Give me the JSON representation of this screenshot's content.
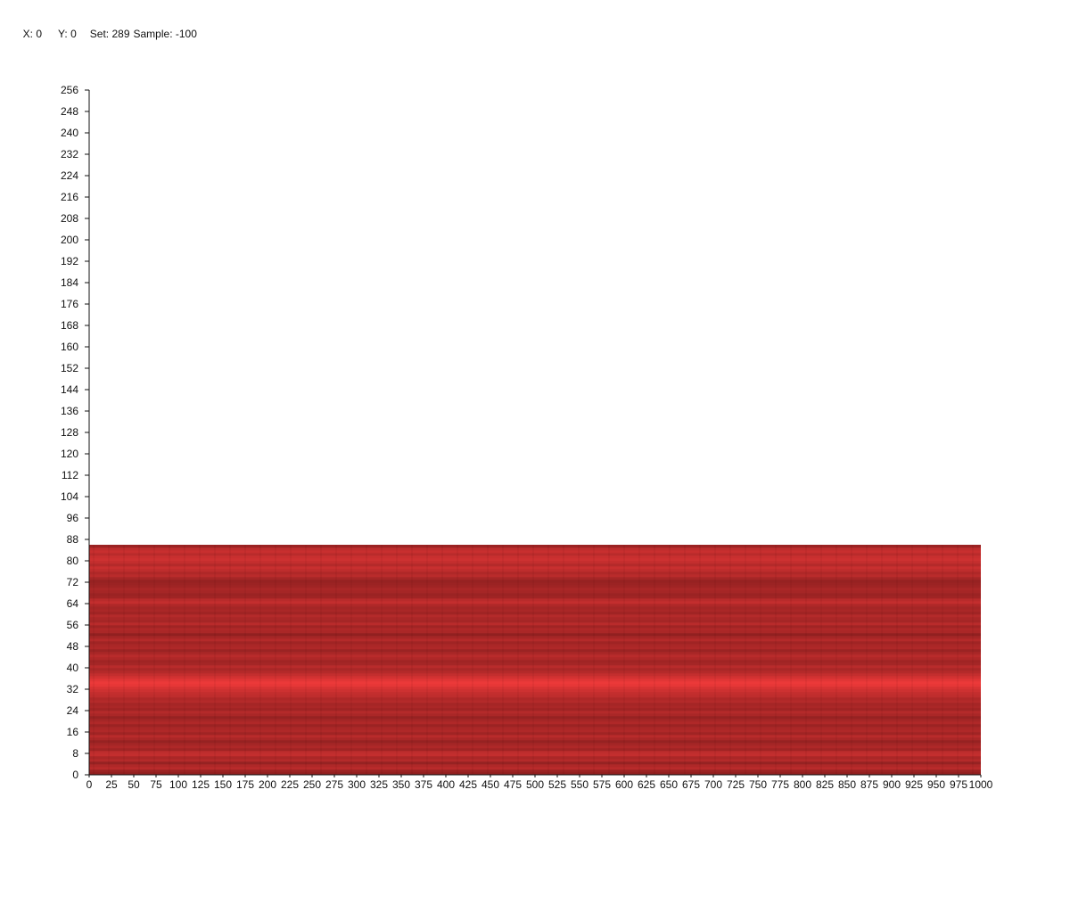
{
  "status": {
    "x_label": "X:",
    "x_value": "0",
    "y_label": "Y:",
    "y_value": "0",
    "set_label": "Set:",
    "set_value": "289",
    "sample_label": "Sample:",
    "sample_value": "-100"
  },
  "chart_data": {
    "type": "heatmap",
    "title": "",
    "xlabel": "",
    "ylabel": "",
    "xlim": [
      0,
      1000
    ],
    "ylim": [
      0,
      256
    ],
    "x_ticks": [
      0,
      25,
      50,
      75,
      100,
      125,
      150,
      175,
      200,
      225,
      250,
      275,
      300,
      325,
      350,
      375,
      400,
      425,
      450,
      475,
      500,
      525,
      550,
      575,
      600,
      625,
      650,
      675,
      700,
      725,
      750,
      775,
      800,
      825,
      850,
      875,
      900,
      925,
      950,
      975,
      1000
    ],
    "y_ticks": [
      0,
      8,
      16,
      24,
      32,
      40,
      48,
      56,
      64,
      72,
      80,
      88,
      96,
      104,
      112,
      120,
      128,
      136,
      144,
      152,
      160,
      168,
      176,
      184,
      192,
      200,
      208,
      216,
      224,
      232,
      240,
      248,
      256
    ],
    "filled_x_range": [
      0,
      1000
    ],
    "filled_y_range": [
      0,
      86
    ],
    "row_intensity": [
      0.05,
      0.15,
      0.45,
      0.35,
      0.1,
      0.4,
      0.3,
      0.55,
      0.5,
      0.2,
      0.35,
      0.25,
      0.1,
      0.3,
      0.45,
      0.2,
      0.35,
      0.3,
      0.15,
      0.35,
      0.25,
      0.1,
      0.3,
      0.4,
      0.2,
      0.3,
      0.25,
      0.4,
      0.35,
      0.5,
      0.55,
      0.65,
      0.75,
      0.9,
      0.95,
      0.85,
      0.7,
      0.55,
      0.4,
      0.3,
      0.45,
      0.25,
      0.2,
      0.35,
      0.45,
      0.3,
      0.15,
      0.35,
      0.3,
      0.2,
      0.4,
      0.25,
      0.05,
      0.3,
      0.35,
      0.2,
      0.45,
      0.25,
      0.3,
      0.4,
      0.2,
      0.3,
      0.25,
      0.35,
      0.55,
      0.45,
      0.2,
      0.15,
      0.25,
      0.3,
      0.2,
      0.15,
      0.1,
      0.25,
      0.45,
      0.35,
      0.5,
      0.6,
      0.4,
      0.55,
      0.65,
      0.6,
      0.45,
      0.6,
      0.5,
      0.15
    ],
    "colors": {
      "low": "#8c1f1f",
      "high": "#f03a3a"
    }
  }
}
